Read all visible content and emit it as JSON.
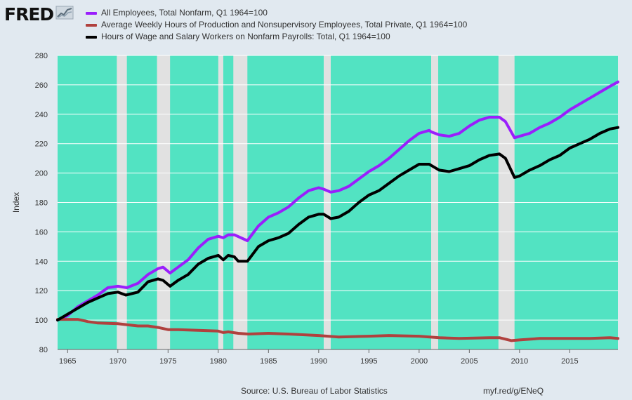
{
  "branding": {
    "logo_text": "FRED"
  },
  "footer": {
    "source": "Source: U.S. Bureau of Labor Statistics",
    "link": "myf.red/g/ENeQ"
  },
  "chart_data": {
    "type": "line",
    "title": "",
    "xlabel": "",
    "ylabel": "Index",
    "xlim": [
      1964,
      2019.8
    ],
    "ylim": [
      80,
      280
    ],
    "yticks": [
      80,
      100,
      120,
      140,
      160,
      180,
      200,
      220,
      240,
      260,
      280
    ],
    "xticks": [
      1965,
      1970,
      1975,
      1980,
      1985,
      1990,
      1995,
      2000,
      2005,
      2010,
      2015
    ],
    "grid": true,
    "legend_position": "top-left",
    "background_color": "#52e3c2",
    "recession_color": "#e1e1e1",
    "recessions": [
      [
        1969.9,
        1970.9
      ],
      [
        1973.9,
        1975.2
      ],
      [
        1980.0,
        1980.5
      ],
      [
        1981.5,
        1982.9
      ],
      [
        1990.5,
        1991.2
      ],
      [
        2001.2,
        2001.9
      ],
      [
        2007.9,
        2009.5
      ]
    ],
    "series": [
      {
        "name": "All Employees, Total Nonfarm, Q1 1964=100",
        "color": "#9a1efc",
        "x": [
          1964,
          1965,
          1966,
          1967,
          1968,
          1969,
          1970,
          1970.9,
          1972,
          1973,
          1974,
          1974.5,
          1975.2,
          1976,
          1977,
          1978,
          1979,
          1980,
          1980.5,
          1981,
          1981.6,
          1982.9,
          1984,
          1985,
          1986,
          1987,
          1988,
          1989,
          1990,
          1990.5,
          1991.2,
          1992,
          1993,
          1994,
          1995,
          1996,
          1997,
          1998,
          1999,
          2000,
          2001,
          2001.2,
          2002,
          2003,
          2004,
          2005,
          2006,
          2007,
          2008,
          2008.6,
          2009.5,
          2010,
          2011,
          2012,
          2013,
          2014,
          2015,
          2016,
          2017,
          2018,
          2019,
          2019.8
        ],
        "values": [
          100,
          103,
          109,
          113,
          117,
          122,
          123,
          122,
          125,
          131,
          135,
          136,
          132,
          136,
          141,
          149,
          155,
          157,
          156,
          158,
          158,
          154,
          164,
          170,
          173,
          177,
          183,
          188,
          190,
          189,
          187,
          188,
          191,
          196,
          201,
          205,
          210,
          216,
          222,
          227,
          229,
          228,
          226,
          225,
          227,
          232,
          236,
          238,
          238,
          235,
          224,
          225,
          227,
          231,
          234,
          238,
          243,
          247,
          251,
          255,
          259,
          262
        ]
      },
      {
        "name": "Average Weekly Hours of Production and Nonsupervisory Employees, Total Private, Q1 1964=100",
        "color": "#b0413e",
        "x": [
          1964,
          1966,
          1967,
          1968,
          1970,
          1972,
          1973,
          1974,
          1975,
          1976,
          1978,
          1980,
          1980.5,
          1981,
          1982,
          1983,
          1985,
          1987,
          1990,
          1992,
          1995,
          1997,
          2000,
          2002,
          2004,
          2007,
          2008,
          2009.2,
          2010,
          2012,
          2015,
          2017,
          2019,
          2019.8
        ],
        "values": [
          100.5,
          100.5,
          99,
          98,
          97.5,
          96,
          96,
          95,
          93.5,
          93.5,
          93,
          92.5,
          91.5,
          92,
          91,
          90.5,
          91,
          90.5,
          89.5,
          88.5,
          89,
          89.5,
          89,
          88,
          87.5,
          88,
          88,
          86,
          86.5,
          87.5,
          87.5,
          87.5,
          88,
          87.5
        ]
      },
      {
        "name": "Hours of Wage and Salary Workers on Nonfarm Payrolls: Total, Q1 1964=100",
        "color": "#000000",
        "x": [
          1964,
          1965,
          1966,
          1967,
          1968,
          1969,
          1970,
          1970.8,
          1972,
          1973,
          1974,
          1974.5,
          1975.2,
          1976,
          1977,
          1978,
          1979,
          1980,
          1980.5,
          1981,
          1981.6,
          1982,
          1982.9,
          1984,
          1985,
          1986,
          1987,
          1988,
          1989,
          1990,
          1990.5,
          1991.2,
          1992,
          1993,
          1994,
          1995,
          1996,
          1997,
          1998,
          1999,
          2000,
          2001,
          2001.5,
          2002,
          2003,
          2004,
          2005,
          2006,
          2007,
          2008,
          2008.6,
          2009.5,
          2010,
          2011,
          2012,
          2013,
          2014,
          2015,
          2016,
          2017,
          2018,
          2019,
          2019.8
        ],
        "values": [
          100,
          104,
          108,
          112,
          115,
          118,
          119,
          117,
          119,
          126,
          128,
          127,
          123,
          127,
          131,
          138,
          142,
          144,
          141,
          144,
          143,
          140,
          140,
          150,
          154,
          156,
          159,
          165,
          170,
          172,
          172,
          169,
          170,
          174,
          180,
          185,
          188,
          193,
          198,
          202,
          206,
          206,
          204,
          202,
          201,
          203,
          205,
          209,
          212,
          213,
          210,
          197,
          198,
          202,
          205,
          209,
          212,
          217,
          220,
          223,
          227,
          230,
          231
        ]
      }
    ]
  }
}
